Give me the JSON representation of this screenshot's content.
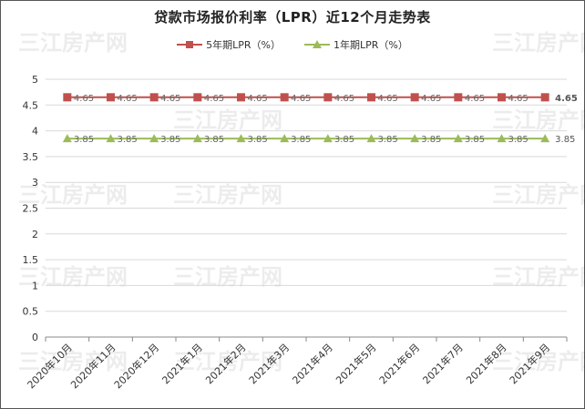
{
  "chart_data": {
    "type": "line",
    "title": "贷款市场报价利率（LPR）近12个月走势表",
    "categories": [
      "2020年10月",
      "2020年11月",
      "2020年12月",
      "2021年1月",
      "2021年2月",
      "2021年3月",
      "2021年4月",
      "2021年5月",
      "2021年6月",
      "2021年7月",
      "2021年8月",
      "2021年9月"
    ],
    "series": [
      {
        "name": "5年期LPR（%）",
        "color": "#c0504d",
        "marker": "square",
        "values": [
          4.65,
          4.65,
          4.65,
          4.65,
          4.65,
          4.65,
          4.65,
          4.65,
          4.65,
          4.65,
          4.65,
          4.65
        ]
      },
      {
        "name": "1年期LPR（%）",
        "color": "#9bbb59",
        "marker": "triangle",
        "values": [
          3.85,
          3.85,
          3.85,
          3.85,
          3.85,
          3.85,
          3.85,
          3.85,
          3.85,
          3.85,
          3.85,
          3.85
        ]
      }
    ],
    "yticks": [
      "0",
      "0.5",
      "1",
      "1.5",
      "2",
      "2.5",
      "3",
      "3.5",
      "4",
      "4.5",
      "5"
    ],
    "ylim": [
      0,
      5
    ],
    "grid": true,
    "legend": "top-center"
  },
  "watermark": "三江房产网"
}
